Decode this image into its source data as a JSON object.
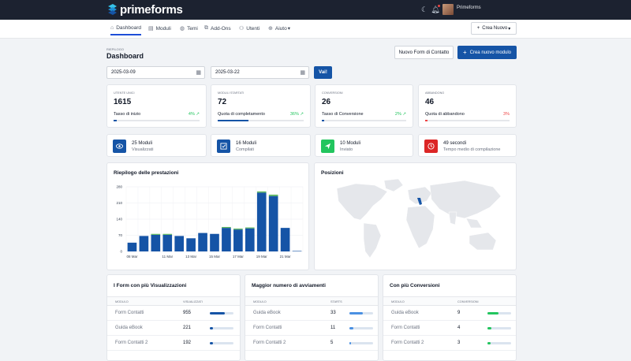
{
  "app": {
    "name": "primeforms",
    "user": "Primeforms"
  },
  "nav": {
    "items": [
      {
        "label": "Dashboard",
        "icon": "home-icon"
      },
      {
        "label": "Moduli",
        "icon": "form-icon"
      },
      {
        "label": "Temi",
        "icon": "palette-icon"
      },
      {
        "label": "Add-Ons",
        "icon": "puzzle-icon"
      },
      {
        "label": "Utenti",
        "icon": "users-icon"
      },
      {
        "label": "Aiuto",
        "icon": "help-icon"
      }
    ],
    "create": "Crea Nuovo"
  },
  "page": {
    "breadcrumb": "Riepilogo",
    "title": "Dashboard",
    "btn_contact": "Nuovo Form di Contatto",
    "btn_new": "Crea nuovo modulo"
  },
  "filters": {
    "start": "2025-03-09",
    "end": "2025-03-22",
    "go": "Vai!"
  },
  "stats": [
    {
      "label": "Utente unici",
      "value": "1615",
      "sub": "Tasso di inizio",
      "pct": "4%",
      "fill": 0.04,
      "color": "#22c55e",
      "barcolor": "#1554a6"
    },
    {
      "label": "Moduli Startati",
      "value": "72",
      "sub": "Quota di completamento",
      "pct": "36%",
      "fill": 0.36,
      "color": "#22c55e",
      "barcolor": "#1554a6"
    },
    {
      "label": "Conversioni",
      "value": "26",
      "sub": "Tasso di Conversione",
      "pct": "2%",
      "fill": 0.02,
      "color": "#22c55e",
      "barcolor": "#1554a6"
    },
    {
      "label": "Abbandono",
      "value": "46",
      "sub": "Quota di abbandono",
      "pct": "3%",
      "fill": 0.03,
      "color": "#ef4444",
      "barcolor": "#ef4444"
    }
  ],
  "info": [
    {
      "line1": "25 Moduli",
      "line2": "Visualizzati",
      "icon": "eye-icon",
      "color": "#1554a6"
    },
    {
      "line1": "16 Moduli",
      "line2": "Compilati",
      "icon": "check-icon",
      "color": "#1554a6"
    },
    {
      "line1": "10 Moduli",
      "line2": "Inviato",
      "icon": "send-icon",
      "color": "#22c55e"
    },
    {
      "line1": "49 secondi",
      "line2": "Tempo medio di compilazione",
      "icon": "clock-icon",
      "color": "#dc2626"
    }
  ],
  "chart_data": {
    "type": "bar",
    "title": "Riepilogo delle prestazioni",
    "x": [
      "08 Mar",
      "09 Mar",
      "10 Mar",
      "11 Mar",
      "12 Mar",
      "13 Mar",
      "14 Mar",
      "15 Mar",
      "16 Mar",
      "17 Mar",
      "18 Mar",
      "19 Mar",
      "20 Mar",
      "21 Mar",
      "22 Mar"
    ],
    "xtick_labels": [
      "08 Mar",
      "11 Mar",
      "13 Mar",
      "15 Mar",
      "17 Mar",
      "19 Mar",
      "21 Mar"
    ],
    "xtick_index": [
      0,
      3,
      5,
      7,
      9,
      11,
      13
    ],
    "yticks": [
      0,
      70,
      140,
      210,
      280
    ],
    "ylim": [
      0,
      280
    ],
    "series": [
      {
        "color": "#1554a6",
        "values": [
          38,
          67,
          72,
          72,
          67,
          57,
          80,
          76,
          102,
          95,
          100,
          255,
          240,
          102,
          2
        ]
      },
      {
        "color": "#5cb85c",
        "values": [
          0,
          0,
          4,
          4,
          0,
          0,
          0,
          0,
          4,
          4,
          4,
          5,
          6,
          0,
          0
        ]
      }
    ]
  },
  "map": {
    "title": "Posizioni"
  },
  "tables": [
    {
      "title": "I Form con più Visualizzazioni",
      "col1": "Modulo",
      "col2": "Visualizzati",
      "bar_color": "#1554a6",
      "rows": [
        {
          "name": "Form Contatti",
          "value": "955",
          "fill": 0.62
        },
        {
          "name": "Guida eBook",
          "value": "221",
          "fill": 0.12
        },
        {
          "name": "Form Contatti 2",
          "value": "192",
          "fill": 0.12
        }
      ]
    },
    {
      "title": "Maggior numero di avviamenti",
      "col1": "Modulo",
      "col2": "Starts",
      "bar_color": "#4a90e2",
      "rows": [
        {
          "name": "Guida eBook",
          "value": "33",
          "fill": 0.55
        },
        {
          "name": "Form Contatti",
          "value": "11",
          "fill": 0.18
        },
        {
          "name": "Form Contatti 2",
          "value": "5",
          "fill": 0.08
        }
      ]
    },
    {
      "title": "Con più Conversioni",
      "col1": "Modulo",
      "col2": "Conversioni",
      "bar_color": "#22c55e",
      "rows": [
        {
          "name": "Guida eBook",
          "value": "9",
          "fill": 0.45
        },
        {
          "name": "Form Contatti",
          "value": "4",
          "fill": 0.18
        },
        {
          "name": "Form Contatti 2",
          "value": "3",
          "fill": 0.14
        }
      ]
    }
  ]
}
